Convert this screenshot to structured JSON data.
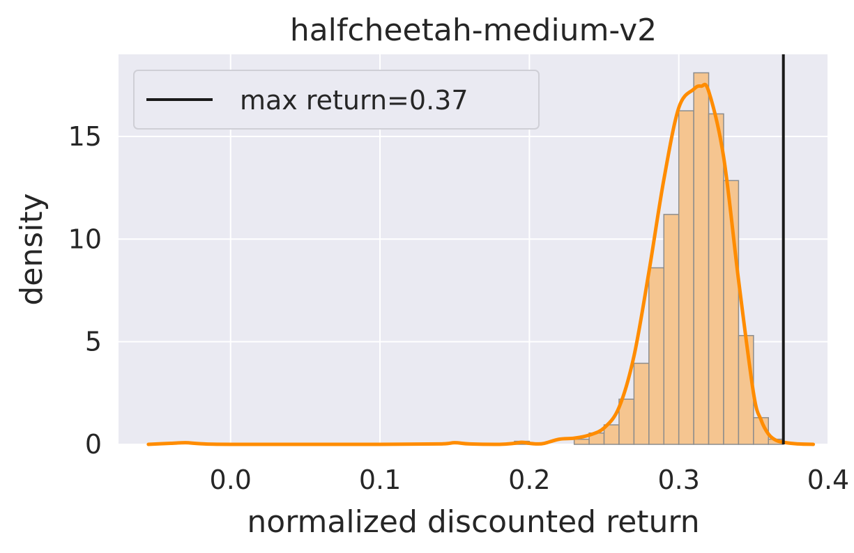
{
  "chart_data": {
    "type": "bar",
    "title": "halfcheetah-medium-v2",
    "xlabel": "normalized discounted return",
    "ylabel": "density",
    "xlim": [
      -0.075,
      0.4
    ],
    "ylim": [
      0,
      19
    ],
    "xticks": [
      0.0,
      0.1,
      0.2,
      0.3,
      0.4
    ],
    "xtick_labels": [
      "0.0",
      "0.1",
      "0.2",
      "0.3",
      "0.4"
    ],
    "yticks": [
      0,
      5,
      10,
      15
    ],
    "ytick_labels": [
      "0",
      "5",
      "10",
      "15"
    ],
    "grid": true,
    "legend_position": "top-left",
    "histogram": {
      "bin_width": 0.01,
      "bins": [
        {
          "x0": 0.19,
          "x1": 0.2,
          "density": 0.15
        },
        {
          "x0": 0.23,
          "x1": 0.24,
          "density": 0.25
        },
        {
          "x0": 0.24,
          "x1": 0.25,
          "density": 0.55
        },
        {
          "x0": 0.25,
          "x1": 0.26,
          "density": 0.95
        },
        {
          "x0": 0.26,
          "x1": 0.27,
          "density": 2.2
        },
        {
          "x0": 0.27,
          "x1": 0.28,
          "density": 3.95
        },
        {
          "x0": 0.28,
          "x1": 0.29,
          "density": 8.6
        },
        {
          "x0": 0.29,
          "x1": 0.3,
          "density": 11.2
        },
        {
          "x0": 0.3,
          "x1": 0.31,
          "density": 16.25
        },
        {
          "x0": 0.31,
          "x1": 0.32,
          "density": 18.1
        },
        {
          "x0": 0.32,
          "x1": 0.33,
          "density": 16.1
        },
        {
          "x0": 0.33,
          "x1": 0.34,
          "density": 12.85
        },
        {
          "x0": 0.34,
          "x1": 0.35,
          "density": 5.3
        },
        {
          "x0": 0.35,
          "x1": 0.36,
          "density": 1.3
        },
        {
          "x0": 0.36,
          "x1": 0.37,
          "density": 0.25
        }
      ]
    },
    "kde": {
      "x": [
        -0.055,
        -0.04,
        -0.03,
        -0.02,
        0.0,
        0.1,
        0.14,
        0.15,
        0.16,
        0.18,
        0.19,
        0.195,
        0.2,
        0.205,
        0.21,
        0.22,
        0.23,
        0.24,
        0.25,
        0.26,
        0.27,
        0.28,
        0.29,
        0.3,
        0.31,
        0.315,
        0.32,
        0.33,
        0.34,
        0.35,
        0.355,
        0.36,
        0.365,
        0.37,
        0.38,
        0.39
      ],
      "y": [
        0.0,
        0.05,
        0.08,
        0.03,
        0.0,
        0.0,
        0.02,
        0.08,
        0.02,
        0.0,
        0.05,
        0.1,
        0.05,
        0.02,
        0.05,
        0.25,
        0.3,
        0.45,
        0.8,
        1.8,
        4.3,
        8.4,
        12.9,
        16.4,
        17.3,
        17.45,
        17.2,
        14.0,
        8.0,
        2.5,
        1.2,
        0.5,
        0.2,
        0.1,
        0.02,
        0.0
      ]
    },
    "max_return": {
      "value": 0.37,
      "legend_label": "max return=0.37",
      "color": "#1a1a1a"
    },
    "colors": {
      "plot_background": "#eaeaf2",
      "grid": "#ffffff",
      "bar_fill": "#f5c590",
      "bar_edge": "#8c8c8c",
      "kde_line": "#ff8c00",
      "text": "#262626"
    }
  }
}
